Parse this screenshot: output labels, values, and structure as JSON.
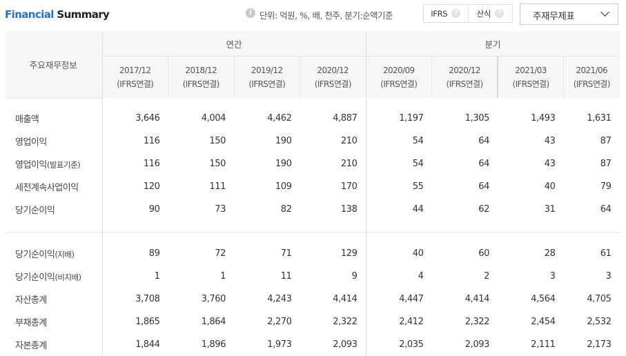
{
  "header": {
    "title_part1": "Financial",
    "title_part2": "Summary",
    "info_icon": "info-icon",
    "unit_text": "단위: 억원, %, 배, 천주, 분기:순액기준",
    "toggles": [
      {
        "label": "IFRS",
        "help": "?"
      },
      {
        "label": "산식",
        "help": "?"
      }
    ],
    "select": {
      "value": "주재무제표",
      "icon": "chevron-down-icon"
    }
  },
  "table": {
    "item_header": "주요재무정보",
    "group_annual": "연간",
    "group_quarter": "분기",
    "periods": [
      {
        "date": "2017/12",
        "basis": "(IFRS연결)"
      },
      {
        "date": "2018/12",
        "basis": "(IFRS연결)"
      },
      {
        "date": "2019/12",
        "basis": "(IFRS연결)"
      },
      {
        "date": "2020/12",
        "basis": "(IFRS연결)"
      },
      {
        "date": "2020/09",
        "basis": "(IFRS연결)"
      },
      {
        "date": "2020/12",
        "basis": "(IFRS연결)"
      },
      {
        "date": "2021/03",
        "basis": "(IFRS연결)"
      },
      {
        "date": "2021/06",
        "basis": "(IFRS연결)"
      }
    ],
    "rows": [
      {
        "label": "매출액",
        "sub": "",
        "values": [
          "3,646",
          "4,004",
          "4,462",
          "4,887",
          "1,197",
          "1,305",
          "1,493",
          "1,631"
        ]
      },
      {
        "label": "영업이익",
        "sub": "",
        "values": [
          "116",
          "150",
          "190",
          "210",
          "54",
          "64",
          "43",
          "87"
        ]
      },
      {
        "label": "영업이익",
        "sub": "(발표기준)",
        "values": [
          "116",
          "150",
          "190",
          "210",
          "54",
          "64",
          "43",
          "87"
        ]
      },
      {
        "label": "세전계속사업이익",
        "sub": "",
        "values": [
          "120",
          "111",
          "109",
          "170",
          "55",
          "64",
          "40",
          "79"
        ]
      },
      {
        "label": "당기순이익",
        "sub": "",
        "values": [
          "90",
          "73",
          "82",
          "138",
          "44",
          "62",
          "31",
          "64"
        ]
      },
      {
        "label": "당기순이익",
        "sub": "(지배)",
        "values": [
          "89",
          "72",
          "71",
          "129",
          "40",
          "60",
          "28",
          "61"
        ]
      },
      {
        "label": "당기순이익",
        "sub": "(비지배)",
        "values": [
          "1",
          "1",
          "11",
          "9",
          "4",
          "2",
          "3",
          "3"
        ]
      },
      {
        "label": "자산총계",
        "sub": "",
        "values": [
          "3,708",
          "3,760",
          "4,243",
          "4,414",
          "4,447",
          "4,414",
          "4,564",
          "4,705"
        ]
      },
      {
        "label": "부채총계",
        "sub": "",
        "values": [
          "1,865",
          "1,864",
          "2,270",
          "2,322",
          "2,412",
          "2,322",
          "2,454",
          "2,532"
        ]
      },
      {
        "label": "자본총계",
        "sub": "",
        "values": [
          "1,844",
          "1,896",
          "1,973",
          "2,093",
          "2,035",
          "2,093",
          "2,111",
          "2,173"
        ]
      }
    ]
  },
  "colors": {
    "accent_blue": "#2a70c9",
    "header_bg": "#f6f6f6",
    "border": "#e5e5e5"
  }
}
